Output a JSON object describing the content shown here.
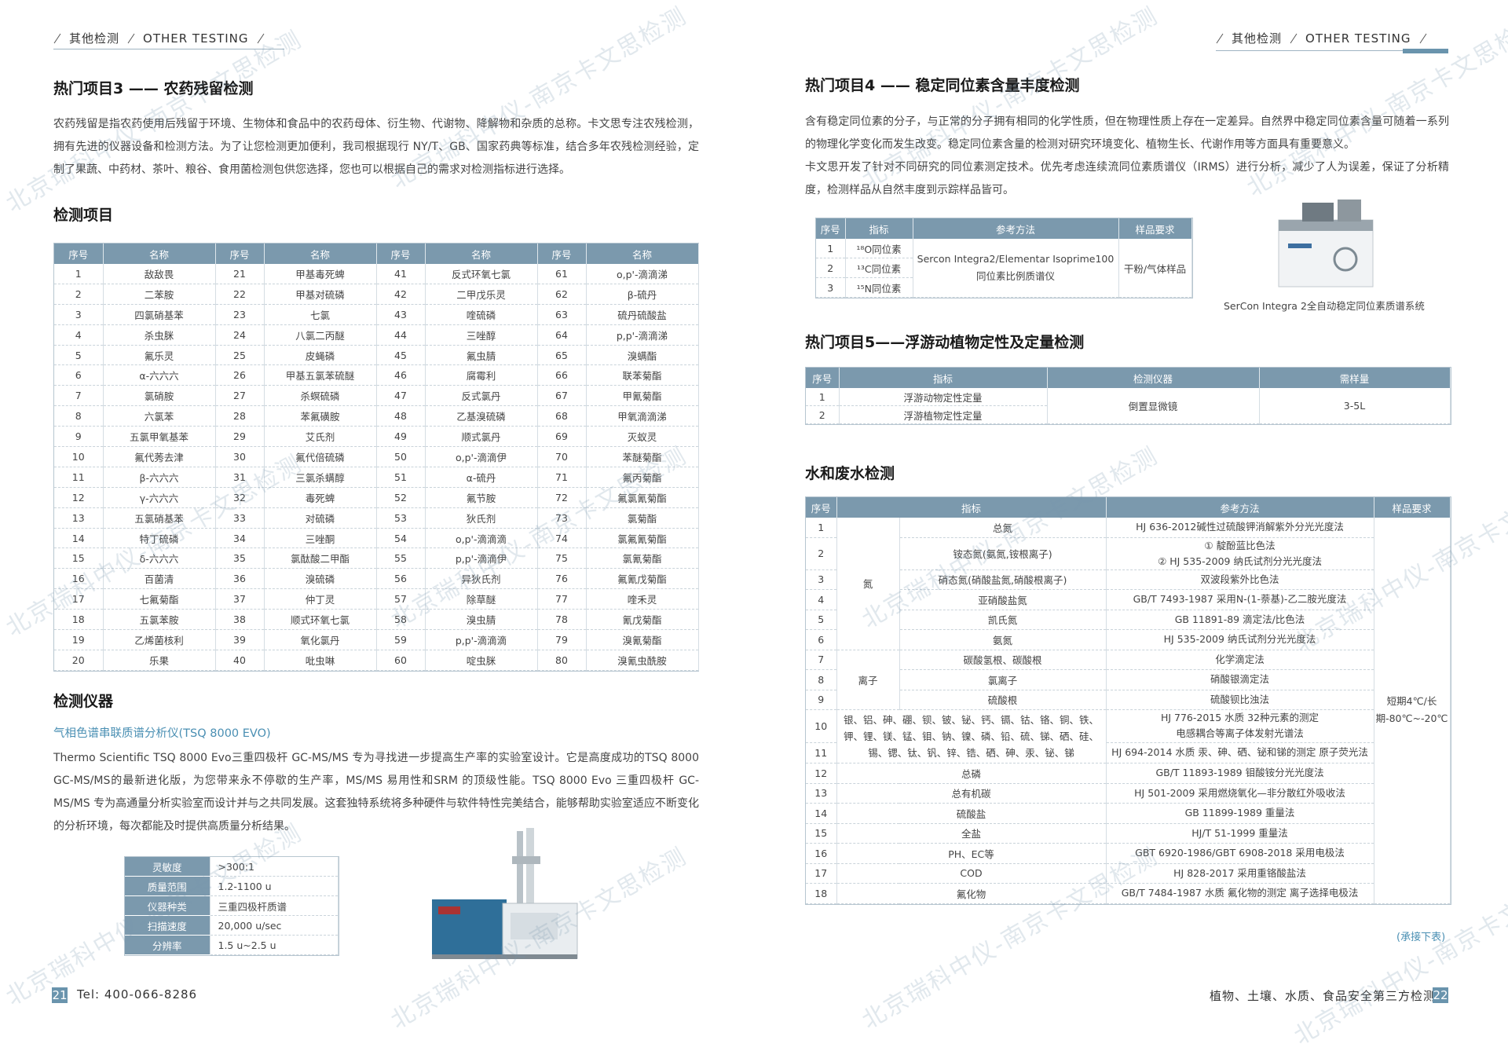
{
  "watermark": "北京瑞科中仪-南京卡文思检测",
  "left": {
    "header": {
      "cn": "其他检测",
      "en": "OTHER TESTING"
    },
    "title": "热门项目3 —— 农药残留检测",
    "intro": "农药残留是指农药使用后残留于环境、生物体和食品中的农药母体、衍生物、代谢物、降解物和杂质的总称。卡文思专注农残检测，拥有先进的仪器设备和检测方法。为了让您检测更加便利，我司根据现行 NY/T、GB、国家药典等标准，结合多年农残检测经验，定制了果蔬、中药材、茶叶、粮谷、食用菌检测包供您选择，您也可以根据自己的需求对检测指标进行选择。",
    "items_title": "检测项目",
    "pesticide": {
      "headers": [
        "序号",
        "名称",
        "序号",
        "名称",
        "序号",
        "名称",
        "序号",
        "名称"
      ],
      "rows": [
        [
          1,
          "敌敌畏",
          21,
          "甲基毒死蜱",
          41,
          "反式环氧七氯",
          61,
          "o,p'-滴滴涕"
        ],
        [
          2,
          "二苯胺",
          22,
          "甲基对硫磷",
          42,
          "二甲戊乐灵",
          62,
          "β-硫丹"
        ],
        [
          3,
          "四氯硝基苯",
          23,
          "七氯",
          43,
          "喹硫磷",
          63,
          "硫丹硫酸盐"
        ],
        [
          4,
          "杀虫脒",
          24,
          "八氯二丙醚",
          44,
          "三唑醇",
          64,
          "p,p'-滴滴涕"
        ],
        [
          5,
          "氟乐灵",
          25,
          "皮蝇磷",
          45,
          "氟虫腈",
          65,
          "溴螨酯"
        ],
        [
          6,
          "α-六六六",
          26,
          "甲基五氯苯硫醚",
          46,
          "腐霉利",
          66,
          "联苯菊酯"
        ],
        [
          7,
          "氯硝胺",
          27,
          "杀螟硫磷",
          47,
          "反式氯丹",
          67,
          "甲氰菊酯"
        ],
        [
          8,
          "六氯苯",
          28,
          "苯氟磺胺",
          48,
          "乙基溴硫磷",
          68,
          "甲氧滴滴涕"
        ],
        [
          9,
          "五氯甲氧基苯",
          29,
          "艾氏剂",
          49,
          "顺式氯丹",
          69,
          "灭蚁灵"
        ],
        [
          10,
          "氟代莠去津",
          30,
          "氟代倍硫磷",
          50,
          "o,p'-滴滴伊",
          70,
          "苯醚菊酯"
        ],
        [
          11,
          "β-六六六",
          31,
          "三氯杀螨醇",
          51,
          "α-硫丹",
          71,
          "氟丙菊酯"
        ],
        [
          12,
          "γ-六六六",
          32,
          "毒死蜱",
          52,
          "氟节胺",
          72,
          "氟氯氰菊酯"
        ],
        [
          13,
          "五氯硝基苯",
          33,
          "对硫磷",
          53,
          "狄氏剂",
          73,
          "氯菊酯"
        ],
        [
          14,
          "特丁硫磷",
          34,
          "三唑酮",
          54,
          "o,p'-滴滴滴",
          74,
          "氯氟氰菊酯"
        ],
        [
          15,
          "δ-六六六",
          35,
          "氯酞酸二甲酯",
          55,
          "p,p'-滴滴伊",
          75,
          "氯氰菊酯"
        ],
        [
          16,
          "百菌清",
          36,
          "溴硫磷",
          56,
          "异狄氏剂",
          76,
          "氟氰戊菊酯"
        ],
        [
          17,
          "七氟菊酯",
          37,
          "仲丁灵",
          57,
          "除草醚",
          77,
          "喹禾灵"
        ],
        [
          18,
          "五氯苯胺",
          38,
          "顺式环氧七氯",
          58,
          "溴虫腈",
          78,
          "氰戊菊酯"
        ],
        [
          19,
          "乙烯菌核利",
          39,
          "氧化氯丹",
          59,
          "p,p'-滴滴滴",
          79,
          "溴氰菊酯"
        ],
        [
          20,
          "乐果",
          40,
          "吡虫啉",
          60,
          "啶虫脒",
          80,
          "溴氰虫酰胺"
        ]
      ]
    },
    "instrument_title": "检测仪器",
    "instrument_name": "气相色谱串联质谱分析仪(TSQ 8000 EVO)",
    "instrument_desc": "Thermo Scientific TSQ 8000 Evo三重四极杆 GC-MS/MS 专为寻找进一步提高生产率的实验室设计。它是高度成功的TSQ 8000 GC-MS/MS的最新进化版，为您带来永不停歇的生产率，MS/MS 易用性和SRM 的顶级性能。TSQ 8000 Evo 三重四极杆 GC-MS/MS 专为高通量分析实验室而设计并与之共同发展。这套独特系统将多种硬件与软件特性完美结合，能够帮助实验室适应不断变化的分析环境，每次都能及时提供高质量分析结果。",
    "specs": [
      [
        "灵敏度",
        ">300:1"
      ],
      [
        "质量范围",
        "1.2-1100 u"
      ],
      [
        "仪器种类",
        "三重四极杆质谱"
      ],
      [
        "扫描速度",
        "20,000 u/sec"
      ],
      [
        "分辨率",
        "1.5 u~2.5 u"
      ]
    ],
    "footer": {
      "page": "21",
      "tel": "Tel: 400-066-8286"
    }
  },
  "right": {
    "header": {
      "cn": "其他检测",
      "en": "OTHER TESTING"
    },
    "title4": "热门项目4 —— 稳定同位素含量丰度检测",
    "intro": [
      "含有稳定同位素的分子，与正常的分子拥有相同的化学性质，但在物理性质上存在一定差异。自然界中稳定同位素含量可随着一系列的物理化学变化而发生改变。稳定同位素含量的检测对研究环境变化、植物生长、代谢作用等方面具有重要意义。",
      "卡文思开发了针对不同研究的同位素测定技术。优先考虑连续流同位素质谱仪（IRMS）进行分析，减少了人为误差，保证了分析精度，检测样品从自然丰度到示踪样品皆可。"
    ],
    "isotope": {
      "headers": [
        "序号",
        "指标",
        "参考方法",
        "样品要求"
      ],
      "rows": [
        {
          "no": 1,
          "item": "¹⁸O同位素"
        },
        {
          "no": 2,
          "item": "¹³C同位素"
        },
        {
          "no": 3,
          "item": "¹⁵N同位素"
        }
      ],
      "method": [
        "Sercon Integra2/Elementar Isoprime100",
        "同位素比例质谱仪"
      ],
      "sample": "干粉/气体样品",
      "caption": "SerCon Integra 2全自动稳定同位素质谱系统"
    },
    "title5": "热门项目5——浮游动植物定性及定量检测",
    "plankton": {
      "headers": [
        "序号",
        "指标",
        "检测仪器",
        "需样量"
      ],
      "rows": [
        {
          "no": 1,
          "item": "浮游动物定性定量"
        },
        {
          "no": 2,
          "item": "浮游植物定性定量"
        }
      ],
      "instrument": "倒置显微镜",
      "amount": "3-5L"
    },
    "water_title": "水和废水检测",
    "water": {
      "headers": [
        "序号",
        "指标",
        "参考方法",
        "样品要求"
      ],
      "sample": "短期4℃/长期-80℃~-20℃",
      "sections": [
        {
          "group": "氮",
          "rows": [
            {
              "no": 1,
              "item": "总氮",
              "method": [
                "HJ 636-2012碱性过硫酸钾消解紫外分光光度法"
              ]
            },
            {
              "no": 2,
              "item": "铵态氮(氨氮,铵根离子)",
              "method": [
                "① 靛酚蓝比色法",
                "② HJ 535-2009 纳氏试剂分光光度法"
              ]
            },
            {
              "no": 3,
              "item": "硝态氮(硝酸盐氮,硝酸根离子)",
              "method": [
                "双波段紫外比色法"
              ]
            },
            {
              "no": 4,
              "item": "亚硝酸盐氮",
              "method": [
                "GB/T 7493-1987 采用N-(1-萘基)-乙二胺光度法"
              ]
            },
            {
              "no": 5,
              "item": "凯氏氮",
              "method": [
                "GB 11891-89 滴定法/比色法"
              ]
            },
            {
              "no": 6,
              "item": "氨氮",
              "method": [
                "HJ 535-2009 纳氏试剂分光光度法"
              ]
            }
          ]
        },
        {
          "group": "离子",
          "rows": [
            {
              "no": 7,
              "item": "碳酸氢根、碳酸根",
              "method": [
                "化学滴定法"
              ]
            },
            {
              "no": 8,
              "item": "氯离子",
              "method": [
                "硝酸银滴定法"
              ]
            },
            {
              "no": 9,
              "item": "硫酸根",
              "method": [
                "硫酸钡比浊法"
              ]
            }
          ]
        },
        {
          "group": "银、铝、砷、硼、钡、铍、铋、钙、镉、钴、铬、铜、铁、钾、锂、镁、锰、钼、钠、镍、磷、铅、硫、锑、硒、硅、锡、锶、钛、钒、锌、锆、硒、砷、汞、铋、锑",
          "rows": [
            {
              "no": 10,
              "method": [
                "HJ 776-2015 水质 32种元素的测定",
                "电感耦合等离子体发射光谱法"
              ]
            },
            {
              "no": 11,
              "method": [
                "HJ 694-2014 水质 汞、砷、硒、铋和锑的测定 原子荧光法"
              ]
            }
          ]
        },
        {
          "rows": [
            {
              "no": 12,
              "item": "总磷",
              "method": [
                "GB/T 11893-1989 钼酸铵分光光度法"
              ]
            },
            {
              "no": 13,
              "item": "总有机碳",
              "method": [
                "HJ 501-2009 采用燃烧氧化—非分散红外吸收法"
              ]
            },
            {
              "no": 14,
              "item": "硫酸盐",
              "method": [
                "GB 11899-1989 重量法"
              ]
            },
            {
              "no": 15,
              "item": "全盐",
              "method": [
                "HJ/T 51-1999 重量法"
              ]
            },
            {
              "no": 16,
              "item": "PH、EC等",
              "method": [
                "GBT 6920-1986/GBT 6908-2018 采用电极法"
              ]
            },
            {
              "no": 17,
              "item": "COD",
              "method": [
                "HJ 828-2017 采用重铬酸盐法"
              ]
            },
            {
              "no": 18,
              "item": "氟化物",
              "method": [
                "GB/T 7484-1987 水质 氟化物的测定 离子选择电极法"
              ]
            }
          ]
        }
      ],
      "continued": "(承接下表)"
    },
    "footer": {
      "page": "22",
      "slogan": "植物、土壤、水质、食品安全第三方检测"
    }
  }
}
